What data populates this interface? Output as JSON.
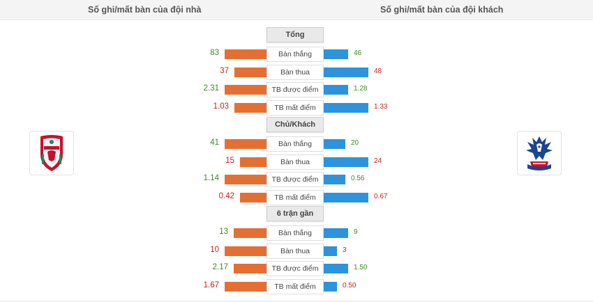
{
  "header": {
    "home_title": "Số ghi/mất bàn của đội nhà",
    "away_title": "Số ghi/mất bàn của đội khách"
  },
  "teams": {
    "home_logo_icon": "liverpool-crest-icon",
    "away_logo_icon": "crystal-palace-crest-icon"
  },
  "colors": {
    "home_bar": "#e56f32",
    "away_bar": "#2d93dc",
    "good_value": "#3a8a1e",
    "bad_value": "#d0201b"
  },
  "sections": [
    {
      "title": "Tổng",
      "rows": [
        {
          "label": "Bàn thắng",
          "home": "83",
          "away": "46",
          "home_color": "good",
          "away_color": "good",
          "home_fill": 1.0,
          "away_fill": 0.554
        },
        {
          "label": "Bàn thua",
          "home": "37",
          "away": "48",
          "home_color": "bad",
          "away_color": "bad",
          "home_fill": 0.771,
          "away_fill": 1.0
        },
        {
          "label": "TB được điểm",
          "home": "2.31",
          "away": "1.28",
          "home_color": "good",
          "away_color": "good",
          "home_fill": 1.0,
          "away_fill": 0.554
        },
        {
          "label": "TB mất điểm",
          "home": "1.03",
          "away": "1.33",
          "home_color": "bad",
          "away_color": "bad",
          "home_fill": 0.774,
          "away_fill": 1.0
        }
      ]
    },
    {
      "title": "Chủ/Khách",
      "rows": [
        {
          "label": "Bàn thắng",
          "home": "41",
          "away": "20",
          "home_color": "good",
          "away_color": "good",
          "home_fill": 1.0,
          "away_fill": 0.488
        },
        {
          "label": "Bàn thua",
          "home": "15",
          "away": "24",
          "home_color": "bad",
          "away_color": "bad",
          "home_fill": 0.625,
          "away_fill": 1.0
        },
        {
          "label": "TB được điểm",
          "home": "1.14",
          "away": "0.56",
          "home_color": "good",
          "away_color": "good",
          "home_fill": 1.0,
          "away_fill": 0.491
        },
        {
          "label": "TB mất điểm",
          "home": "0.42",
          "away": "0.67",
          "home_color": "bad",
          "away_color": "bad",
          "home_fill": 0.627,
          "away_fill": 1.0
        }
      ]
    },
    {
      "title": "6 trận gần",
      "rows": [
        {
          "label": "Bàn thắng",
          "home": "13",
          "away": "9",
          "home_color": "good",
          "away_color": "good",
          "home_fill": 0.78,
          "away_fill": 0.54
        },
        {
          "label": "Bàn thua",
          "home": "10",
          "away": "3",
          "home_color": "bad",
          "away_color": "bad",
          "home_fill": 1.0,
          "away_fill": 0.3
        },
        {
          "label": "TB được điểm",
          "home": "2.17",
          "away": "1.50",
          "home_color": "good",
          "away_color": "good",
          "home_fill": 0.78,
          "away_fill": 0.54
        },
        {
          "label": "TB mất điểm",
          "home": "1.67",
          "away": "0.50",
          "home_color": "bad",
          "away_color": "bad",
          "home_fill": 1.0,
          "away_fill": 0.3
        }
      ]
    }
  ]
}
